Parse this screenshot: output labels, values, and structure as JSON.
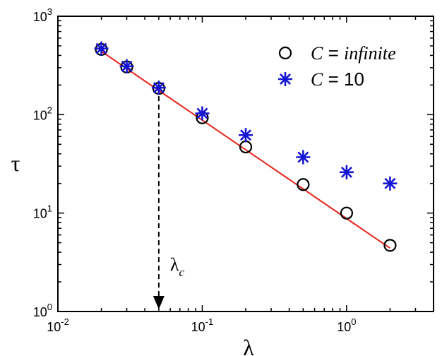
{
  "chart_data": {
    "type": "scatter",
    "xscale": "log",
    "yscale": "log",
    "xlim": [
      0.01,
      4
    ],
    "ylim": [
      1,
      1000
    ],
    "xlabel": "λ",
    "ylabel": "τ",
    "x_ticks": [
      {
        "value": 0.01,
        "base": "10",
        "exp": "-2"
      },
      {
        "value": 0.1,
        "base": "10",
        "exp": "-1"
      },
      {
        "value": 1,
        "base": "10",
        "exp": "0"
      }
    ],
    "y_ticks": [
      {
        "value": 1,
        "base": "10",
        "exp": "0"
      },
      {
        "value": 10,
        "base": "10",
        "exp": "1"
      },
      {
        "value": 100,
        "base": "10",
        "exp": "2"
      },
      {
        "value": 1000,
        "base": "10",
        "exp": "3"
      }
    ],
    "series": [
      {
        "name": "C = infinite",
        "legend_var": "C",
        "legend_eq": " = ",
        "legend_val": "infinite",
        "marker": "circle",
        "color": "#000000",
        "x": [
          0.02,
          0.03,
          0.05,
          0.1,
          0.2,
          0.5,
          1,
          2
        ],
        "y": [
          460,
          305,
          185,
          93,
          47,
          19.5,
          10,
          4.7
        ]
      },
      {
        "name": "C = 10",
        "legend_var": "C",
        "legend_eq": " = ",
        "legend_val": "10",
        "marker": "asterisk",
        "color": "#1515d6",
        "x": [
          0.02,
          0.03,
          0.05,
          0.1,
          0.2,
          0.5,
          1,
          2
        ],
        "y": [
          470,
          310,
          188,
          103,
          62,
          37,
          26,
          20
        ]
      }
    ],
    "fit_line": {
      "color": "#e8221b",
      "x": [
        0.02,
        2
      ],
      "y": [
        440,
        4.4
      ]
    },
    "annotation": {
      "label": "λ",
      "subscript": "c",
      "x": 0.05,
      "arrow": "dashed, pointing down to x-axis"
    }
  }
}
